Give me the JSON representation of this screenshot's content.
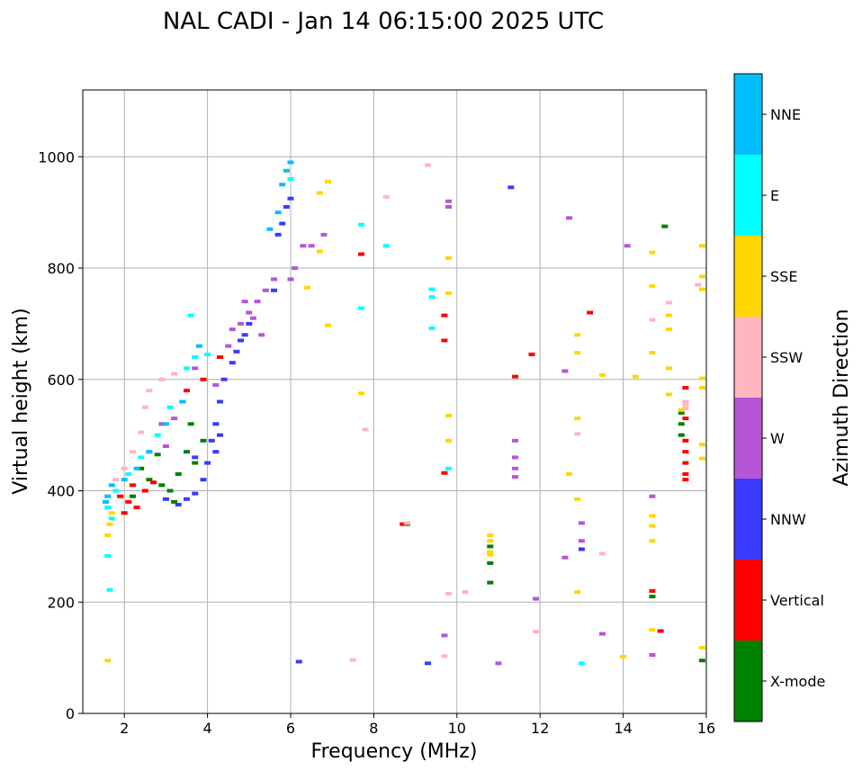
{
  "chart_data": {
    "type": "scatter",
    "title": "NAL CADI - Jan 14 06:15:00 2025 UTC",
    "xlabel": "Frequency (MHz)",
    "ylabel": "Virtual height (km)",
    "xlim": [
      1,
      16
    ],
    "ylim": [
      0,
      1120
    ],
    "xticks": [
      2,
      4,
      6,
      8,
      10,
      12,
      14,
      16
    ],
    "yticks": [
      0,
      200,
      400,
      600,
      800,
      1000
    ],
    "grid": true,
    "colorbar": {
      "label": "Azimuth Direction",
      "categories": [
        {
          "name": "X-mode",
          "color": "#008000"
        },
        {
          "name": "Vertical",
          "color": "#ff0000"
        },
        {
          "name": "NNW",
          "color": "#3a3aff"
        },
        {
          "name": "W",
          "color": "#b656d6"
        },
        {
          "name": "SSW",
          "color": "#ffb6c1"
        },
        {
          "name": "SSE",
          "color": "#ffd700"
        },
        {
          "name": "E",
          "color": "#00ffff"
        },
        {
          "name": "NNE",
          "color": "#00bfff"
        }
      ]
    },
    "series": [
      {
        "name": "X-mode",
        "points": [
          [
            2.6,
            420
          ],
          [
            2.9,
            410
          ],
          [
            3.1,
            400
          ],
          [
            3.3,
            430
          ],
          [
            3.5,
            470
          ],
          [
            3.7,
            450
          ],
          [
            3.9,
            490
          ],
          [
            2.4,
            440
          ],
          [
            2.2,
            390
          ],
          [
            10.8,
            300
          ],
          [
            10.8,
            270
          ],
          [
            10.8,
            235
          ],
          [
            8.8,
            340
          ],
          [
            14.7,
            210
          ],
          [
            15.0,
            875
          ],
          [
            15.4,
            500
          ],
          [
            15.4,
            540
          ],
          [
            15.4,
            520
          ],
          [
            15.9,
            95
          ],
          [
            3.2,
            380
          ],
          [
            2.8,
            465
          ],
          [
            3.6,
            520
          ]
        ]
      },
      {
        "name": "Vertical",
        "points": [
          [
            1.9,
            390
          ],
          [
            2.1,
            380
          ],
          [
            2.3,
            370
          ],
          [
            2.0,
            360
          ],
          [
            2.5,
            400
          ],
          [
            2.7,
            415
          ],
          [
            3.5,
            580
          ],
          [
            3.9,
            600
          ],
          [
            4.3,
            640
          ],
          [
            15.5,
            430
          ],
          [
            15.5,
            420
          ],
          [
            15.5,
            450
          ],
          [
            15.5,
            470
          ],
          [
            15.5,
            490
          ],
          [
            15.5,
            530
          ],
          [
            15.5,
            560
          ],
          [
            15.5,
            585
          ],
          [
            13.2,
            720
          ],
          [
            11.8,
            645
          ],
          [
            11.4,
            605
          ],
          [
            9.7,
            715
          ],
          [
            9.7,
            670
          ],
          [
            7.7,
            825
          ],
          [
            14.7,
            220
          ],
          [
            14.9,
            148
          ],
          [
            8.7,
            340
          ],
          [
            9.7,
            432
          ],
          [
            2.2,
            410
          ]
        ]
      },
      {
        "name": "NNW",
        "points": [
          [
            3.3,
            375
          ],
          [
            3.5,
            385
          ],
          [
            3.7,
            395
          ],
          [
            3.9,
            420
          ],
          [
            4.0,
            450
          ],
          [
            4.2,
            470
          ],
          [
            4.3,
            500
          ],
          [
            4.2,
            520
          ],
          [
            4.3,
            560
          ],
          [
            4.4,
            600
          ],
          [
            4.6,
            630
          ],
          [
            4.7,
            650
          ],
          [
            4.8,
            670
          ],
          [
            4.9,
            680
          ],
          [
            5.0,
            700
          ],
          [
            5.6,
            760
          ],
          [
            5.7,
            860
          ],
          [
            5.8,
            880
          ],
          [
            5.9,
            910
          ],
          [
            6.0,
            925
          ],
          [
            11.3,
            945
          ],
          [
            13.0,
            295
          ],
          [
            6.2,
            93
          ],
          [
            9.3,
            90
          ],
          [
            3.0,
            385
          ],
          [
            3.7,
            460
          ],
          [
            4.1,
            490
          ]
        ]
      },
      {
        "name": "W",
        "points": [
          [
            4.6,
            690
          ],
          [
            4.8,
            700
          ],
          [
            5.0,
            720
          ],
          [
            5.2,
            740
          ],
          [
            5.4,
            760
          ],
          [
            5.6,
            780
          ],
          [
            5.1,
            710
          ],
          [
            4.9,
            740
          ],
          [
            4.5,
            660
          ],
          [
            5.3,
            680
          ],
          [
            6.0,
            780
          ],
          [
            6.1,
            800
          ],
          [
            6.3,
            840
          ],
          [
            6.5,
            840
          ],
          [
            6.8,
            860
          ],
          [
            3.7,
            620
          ],
          [
            4.2,
            590
          ],
          [
            2.9,
            520
          ],
          [
            3.2,
            530
          ],
          [
            9.8,
            910
          ],
          [
            9.8,
            920
          ],
          [
            12.7,
            890
          ],
          [
            12.6,
            615
          ],
          [
            14.1,
            840
          ],
          [
            14.7,
            390
          ],
          [
            14.7,
            105
          ],
          [
            13.5,
            143
          ],
          [
            13.0,
            342
          ],
          [
            13.0,
            310
          ],
          [
            12.6,
            280
          ],
          [
            11.9,
            206
          ],
          [
            11.0,
            90
          ],
          [
            9.7,
            140
          ],
          [
            11.4,
            490
          ],
          [
            11.4,
            460
          ],
          [
            11.4,
            440
          ],
          [
            11.4,
            425
          ],
          [
            2.6,
            470
          ],
          [
            3.0,
            480
          ],
          [
            3.4,
            560
          ]
        ]
      },
      {
        "name": "SSW",
        "points": [
          [
            2.0,
            440
          ],
          [
            2.2,
            470
          ],
          [
            1.8,
            420
          ],
          [
            2.5,
            550
          ],
          [
            2.6,
            580
          ],
          [
            2.9,
            600
          ],
          [
            3.2,
            610
          ],
          [
            8.3,
            928
          ],
          [
            9.3,
            985
          ],
          [
            12.9,
            502
          ],
          [
            14.7,
            707
          ],
          [
            15.1,
            738
          ],
          [
            15.8,
            770
          ],
          [
            15.5,
            548
          ],
          [
            15.5,
            560
          ],
          [
            15.5,
            555
          ],
          [
            10.2,
            218
          ],
          [
            9.8,
            215
          ],
          [
            9.7,
            103
          ],
          [
            11.9,
            147
          ],
          [
            7.5,
            96
          ],
          [
            7.8,
            510
          ],
          [
            13.5,
            287
          ],
          [
            8.8,
            342
          ],
          [
            2.4,
            505
          ]
        ]
      },
      {
        "name": "SSE",
        "points": [
          [
            1.6,
            320
          ],
          [
            1.65,
            340
          ],
          [
            1.7,
            360
          ],
          [
            1.6,
            95
          ],
          [
            6.7,
            935
          ],
          [
            6.9,
            955
          ],
          [
            6.7,
            830
          ],
          [
            6.4,
            765
          ],
          [
            6.9,
            697
          ],
          [
            7.7,
            575
          ],
          [
            9.8,
            818
          ],
          [
            9.8,
            755
          ],
          [
            9.8,
            535
          ],
          [
            9.8,
            490
          ],
          [
            10.8,
            320
          ],
          [
            10.8,
            310
          ],
          [
            10.8,
            290
          ],
          [
            10.8,
            285
          ],
          [
            12.9,
            680
          ],
          [
            12.9,
            648
          ],
          [
            12.9,
            530
          ],
          [
            12.7,
            430
          ],
          [
            12.9,
            385
          ],
          [
            12.9,
            218
          ],
          [
            13.5,
            608
          ],
          [
            14.0,
            102
          ],
          [
            14.7,
            828
          ],
          [
            14.7,
            768
          ],
          [
            14.7,
            648
          ],
          [
            14.7,
            355
          ],
          [
            14.7,
            337
          ],
          [
            14.7,
            310
          ],
          [
            14.7,
            150
          ],
          [
            15.1,
            715
          ],
          [
            15.1,
            690
          ],
          [
            15.1,
            620
          ],
          [
            15.1,
            573
          ],
          [
            15.9,
            840
          ],
          [
            15.9,
            785
          ],
          [
            15.9,
            762
          ],
          [
            15.9,
            602
          ],
          [
            15.9,
            585
          ],
          [
            15.9,
            483
          ],
          [
            15.9,
            458
          ],
          [
            15.9,
            118
          ],
          [
            14.3,
            605
          ],
          [
            15.4,
            545
          ]
        ]
      },
      {
        "name": "E",
        "points": [
          [
            1.6,
            370
          ],
          [
            1.7,
            350
          ],
          [
            1.8,
            400
          ],
          [
            1.6,
            283
          ],
          [
            1.65,
            222
          ],
          [
            2.1,
            430
          ],
          [
            2.4,
            460
          ],
          [
            2.8,
            500
          ],
          [
            3.1,
            550
          ],
          [
            3.5,
            620
          ],
          [
            3.7,
            640
          ],
          [
            3.6,
            715
          ],
          [
            4.0,
            645
          ],
          [
            7.7,
            878
          ],
          [
            7.7,
            728
          ],
          [
            8.3,
            840
          ],
          [
            9.4,
            762
          ],
          [
            9.4,
            748
          ],
          [
            9.4,
            692
          ],
          [
            9.8,
            440
          ],
          [
            13.0,
            90
          ],
          [
            6.0,
            960
          ]
        ]
      },
      {
        "name": "NNE",
        "points": [
          [
            1.55,
            380
          ],
          [
            1.7,
            410
          ],
          [
            1.6,
            390
          ],
          [
            2.0,
            420
          ],
          [
            2.3,
            440
          ],
          [
            2.6,
            470
          ],
          [
            3.0,
            520
          ],
          [
            3.4,
            560
          ],
          [
            5.9,
            975
          ],
          [
            5.8,
            950
          ],
          [
            6.0,
            990
          ],
          [
            5.7,
            900
          ],
          [
            5.5,
            870
          ],
          [
            3.8,
            660
          ]
        ]
      }
    ]
  }
}
